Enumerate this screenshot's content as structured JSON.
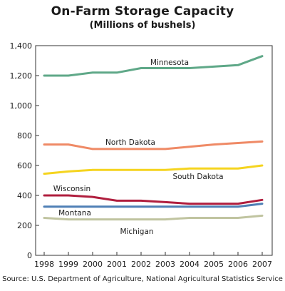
{
  "chart_data": {
    "type": "line",
    "title": "On-Farm Storage Capacity",
    "subtitle": "(Millions of bushels)",
    "source": "Source: U.S. Department of Agriculture, National Agricultural Statistics Service",
    "xlabel": "",
    "ylabel": "",
    "x": [
      "1998",
      "1999",
      "2000",
      "2001",
      "2002",
      "2003",
      "2004",
      "2005",
      "2006",
      "2007"
    ],
    "y_ticks": [
      "0",
      "200",
      "400",
      "600",
      "800",
      "1,000",
      "1,200",
      "1,400"
    ],
    "ylim": [
      0,
      1400
    ],
    "grid": false,
    "legend": "inline labels",
    "series": [
      {
        "name": "Minnesota",
        "color": "#5fa888",
        "values": [
          1200,
          1200,
          1220,
          1220,
          1250,
          1250,
          1250,
          1260,
          1270,
          1330
        ]
      },
      {
        "name": "North Dakota",
        "color": "#ef8a66",
        "values": [
          740,
          740,
          710,
          710,
          710,
          710,
          725,
          740,
          750,
          760
        ]
      },
      {
        "name": "South Dakota",
        "color": "#f5d41f",
        "values": [
          545,
          560,
          570,
          570,
          570,
          570,
          580,
          580,
          580,
          600
        ]
      },
      {
        "name": "Wisconsin",
        "color": "#b01e3e",
        "values": [
          400,
          400,
          390,
          365,
          365,
          355,
          345,
          345,
          345,
          370
        ]
      },
      {
        "name": "Montana",
        "color": "#4f7fb5",
        "values": [
          325,
          325,
          325,
          325,
          325,
          325,
          325,
          325,
          325,
          345
        ]
      },
      {
        "name": "Michigan",
        "color": "#c0c4a0",
        "values": [
          250,
          240,
          240,
          240,
          240,
          240,
          250,
          250,
          250,
          265
        ]
      }
    ]
  }
}
